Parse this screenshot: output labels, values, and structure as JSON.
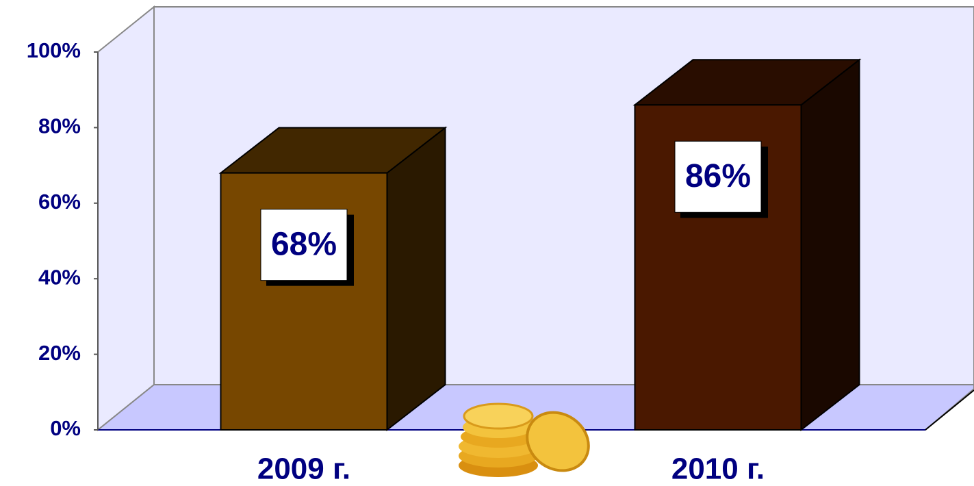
{
  "chart_data": {
    "type": "bar3d",
    "categories": [
      "2009 г.",
      "2010 г."
    ],
    "values": [
      68,
      86
    ],
    "value_labels": [
      "68%",
      "86%"
    ],
    "colors": [
      "#774700",
      "#4a1800"
    ],
    "ylim": [
      0,
      100
    ],
    "yticks": [
      {
        "value": 0,
        "label": "0%"
      },
      {
        "value": 20,
        "label": "20%"
      },
      {
        "value": 40,
        "label": "40%"
      },
      {
        "value": 60,
        "label": "60%"
      },
      {
        "value": 80,
        "label": "80%"
      },
      {
        "value": 100,
        "label": "100%"
      }
    ]
  }
}
